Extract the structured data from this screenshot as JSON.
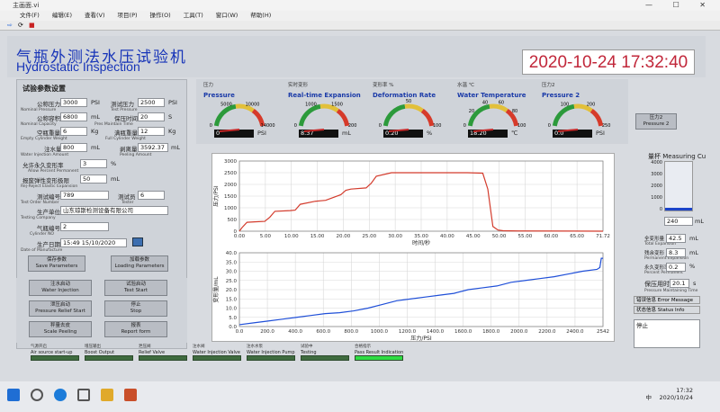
{
  "window": {
    "title": "主画面.vi",
    "controls": "— ☐ ✕"
  },
  "menu": [
    "文件(F)",
    "编辑(E)",
    "查看(V)",
    "项目(P)",
    "操作(O)",
    "工具(T)",
    "窗口(W)",
    "帮助(H)"
  ],
  "header": {
    "title_cn": "气瓶外测法水压试验机",
    "title_en": "Hydrostatic Inspection",
    "datetime": "2020-10-24 17:32:40"
  },
  "params": {
    "title": "试验参数设置",
    "nominal_pressure": {
      "cn": "公称压力",
      "en": "Nominal  Pressure",
      "value": "3000",
      "unit": "PSI"
    },
    "test_pressure": {
      "cn": "测试压力",
      "en": "Test  Pressure",
      "value": "2500",
      "unit": "PSI"
    },
    "nominal_capacity": {
      "cn": "公称容积",
      "en": "Nominal  Capacity",
      "value": "6800",
      "unit": "mL"
    },
    "pres_time": {
      "cn": "保压时间",
      "en": "Pres Maintain Time",
      "value": "20",
      "unit": "S"
    },
    "empty_weight": {
      "cn": "空瓶重量",
      "en": "Empty Cylinder Weight",
      "value": "6",
      "unit": "Kg"
    },
    "full_weight": {
      "cn": "满瓶重量",
      "en": "Full Cylinder Weight",
      "value": "12",
      "unit": "Kg"
    },
    "water_injection": {
      "cn": "注水量",
      "en": "Water Injection Amount",
      "value": "800",
      "unit": "mL"
    },
    "peeling": {
      "cn": "剥离量",
      "en": "Peeling Amount",
      "value": "3592.37",
      "unit": "mL"
    },
    "allow_perm": {
      "cn": "允许永久变形率",
      "en": "Allow Percent Permanent",
      "value": "3",
      "unit": "%"
    },
    "reject_elastic": {
      "cn": "报废弹性变形极限",
      "en": "Rej-Reject Elastic Expansion",
      "value": "50",
      "unit": "mL"
    },
    "test_order": {
      "cn": "测试编号",
      "en": "Test Order Number",
      "value": "789"
    },
    "tester": {
      "cn": "测试员",
      "en": "Tester",
      "value": "6"
    },
    "testing_company": {
      "cn": "生产单位",
      "en": "Testing Company",
      "value": "山东琼斯检测设备有限公司"
    },
    "cylinder_no": {
      "cn": "气瓶编号",
      "en": "Cylinder NO",
      "value": "2"
    },
    "manufacture": {
      "cn": "生产日期",
      "en": "Date of Manufacture",
      "value": "15:49 15/10/2020"
    }
  },
  "buttons": {
    "save": {
      "cn": "保存参数",
      "en": "Save Parameters"
    },
    "load": {
      "cn": "加载参数",
      "en": "Loading Parameters"
    },
    "water_injection": {
      "cn": "注水启动",
      "en": "Water Injection"
    },
    "test_start": {
      "cn": "试验启动",
      "en": "Test Start"
    },
    "pressure_relief": {
      "cn": "泄压启动",
      "en": "Pressure Relief Start"
    },
    "stop": {
      "cn": "停止",
      "en": "Stop"
    },
    "scale_peeling": {
      "cn": "秤量去皮",
      "en": "Scale Peeling"
    },
    "report": {
      "cn": "报表",
      "en": "Report form"
    },
    "pressure2": {
      "cn": "压力2",
      "en": "Pressure 2"
    }
  },
  "gauges": [
    {
      "cn": "压力",
      "en": "Pressure",
      "value": "0",
      "unit": "PSI",
      "ticks": [
        "0",
        "5000",
        "10000",
        "14000"
      ],
      "color": "#2c8f32"
    },
    {
      "cn": "实时变形",
      "en": "Real-time Expansion",
      "value": "8.37",
      "unit": "mL",
      "ticks": [
        "0",
        "1000",
        "1500",
        "200"
      ],
      "color": "#2c8f32"
    },
    {
      "cn": "变形率 %",
      "en": "Deformation Rate",
      "value": "0.20",
      "unit": "%",
      "ticks": [
        "0",
        "50",
        "100"
      ],
      "color": "#2c8f32"
    },
    {
      "cn": "水温 ℃",
      "en": "Water Temperature",
      "value": "18.20",
      "unit": "℃",
      "ticks": [
        "0",
        "20",
        "40",
        "60",
        "80",
        "100"
      ],
      "color": "#2c8f32"
    },
    {
      "cn": "压力2",
      "en": "Pressure 2",
      "value": "0.0",
      "unit": "PSI",
      "ticks": [
        "0",
        "100",
        "200",
        "250"
      ],
      "color": "#2c8f32"
    }
  ],
  "measuring": {
    "title_cn": "量杯",
    "title_en": "Measuring Cu",
    "scale": [
      "4000",
      "3000",
      "2000",
      "1000",
      "0"
    ],
    "level_fraction": 0.06,
    "reading": "240",
    "reading_unit": "mL",
    "total_expansion": {
      "cn": "全变形量",
      "en": "Total Expansion",
      "value": "42.5",
      "unit": "mL"
    },
    "permanent_expansion": {
      "cn": "残余变形",
      "en": "Permanent Expansion",
      "value": "8.3",
      "unit": "mL"
    },
    "percent_permanent": {
      "cn": "永久变形率",
      "en": "Percent Permanent",
      "value": "0.2",
      "unit": "%"
    },
    "pressure_maintain": {
      "cn": "保压用时",
      "en": "Pressure Maintaining Time",
      "value": "20.1",
      "unit": "s"
    },
    "error_msg": {
      "cn": "错误信息",
      "en": "Error Message"
    },
    "status_info": {
      "cn": "状态信息",
      "en": "Status Info"
    },
    "status_text": "停止"
  },
  "indicators": [
    {
      "cn": "气源开启",
      "en": "Air source start-up",
      "on": false
    },
    {
      "cn": "增压输出",
      "en": "Boost Output",
      "on": false
    },
    {
      "cn": "泄压阀",
      "en": "Relief Valve",
      "on": false
    },
    {
      "cn": "注水阀",
      "en": "Water Injection Valve",
      "on": false
    },
    {
      "cn": "注水水泵",
      "en": "Water Injection Pump",
      "on": false
    },
    {
      "cn": "试验中",
      "en": "Testing",
      "on": false
    },
    {
      "cn": "合格指示",
      "en": "Pass Result Indication",
      "on": true
    }
  ],
  "taskbar": {
    "time": "17:32",
    "date": "2020/10/24",
    "lang": "中"
  },
  "chart_data": [
    {
      "type": "line",
      "xlabel": "时间/秒",
      "ylabel": "压力/PSI",
      "xlim": [
        0,
        71.72
      ],
      "ylim": [
        0,
        3000
      ],
      "xticks": [
        "0.00",
        "5.00",
        "10.00",
        "15.00",
        "20.00",
        "25.00",
        "30.00",
        "35.00",
        "40.00",
        "45.00",
        "50.00",
        "55.00",
        "60.00",
        "65.00",
        "71.72"
      ],
      "yticks": [
        "0",
        "500",
        "1000",
        "1500",
        "2000",
        "2500",
        "3000"
      ],
      "color": "#d33b2c",
      "x": [
        0,
        0.5,
        1.5,
        3,
        5,
        6,
        7,
        10,
        11,
        12,
        15,
        16,
        17,
        20,
        21,
        22,
        25,
        26,
        27,
        30,
        31,
        33,
        35,
        45,
        48,
        49,
        50,
        51,
        52,
        55,
        71.72
      ],
      "y": [
        0,
        150,
        380,
        400,
        420,
        600,
        850,
        880,
        900,
        1150,
        1280,
        1300,
        1320,
        1560,
        1750,
        1800,
        1850,
        2050,
        2350,
        2500,
        2500,
        2500,
        2500,
        2500,
        2480,
        1800,
        200,
        50,
        20,
        10,
        0
      ]
    },
    {
      "type": "line",
      "xlabel": "压力/PSI",
      "ylabel": "变形量/mL",
      "xlim": [
        0,
        2542
      ],
      "ylim": [
        0,
        40
      ],
      "xticks": [
        "0.0",
        "200.0",
        "400.0",
        "600.0",
        "800.0",
        "1000.0",
        "1200.0",
        "1400.0",
        "1600.0",
        "1800.0",
        "2000.0",
        "2200.0",
        "2400.0",
        "2542"
      ],
      "yticks": [
        "0.0",
        "5.0",
        "10.0",
        "15.0",
        "20.0",
        "25.0",
        "30.0",
        "35.0",
        "40.0"
      ],
      "color": "#1f4fd8",
      "x": [
        0,
        100,
        200,
        300,
        400,
        500,
        600,
        700,
        800,
        900,
        1000,
        1100,
        1200,
        1300,
        1400,
        1500,
        1600,
        1700,
        1800,
        1900,
        2000,
        2100,
        2200,
        2300,
        2400,
        2500,
        2520,
        2530,
        2542
      ],
      "y": [
        1,
        2,
        3,
        4,
        5,
        6,
        7,
        7.5,
        8.5,
        10,
        12,
        14,
        15,
        16,
        17,
        18,
        20,
        21,
        22,
        24,
        25,
        26,
        27,
        28.5,
        30,
        31,
        32,
        37,
        37
      ]
    }
  ]
}
